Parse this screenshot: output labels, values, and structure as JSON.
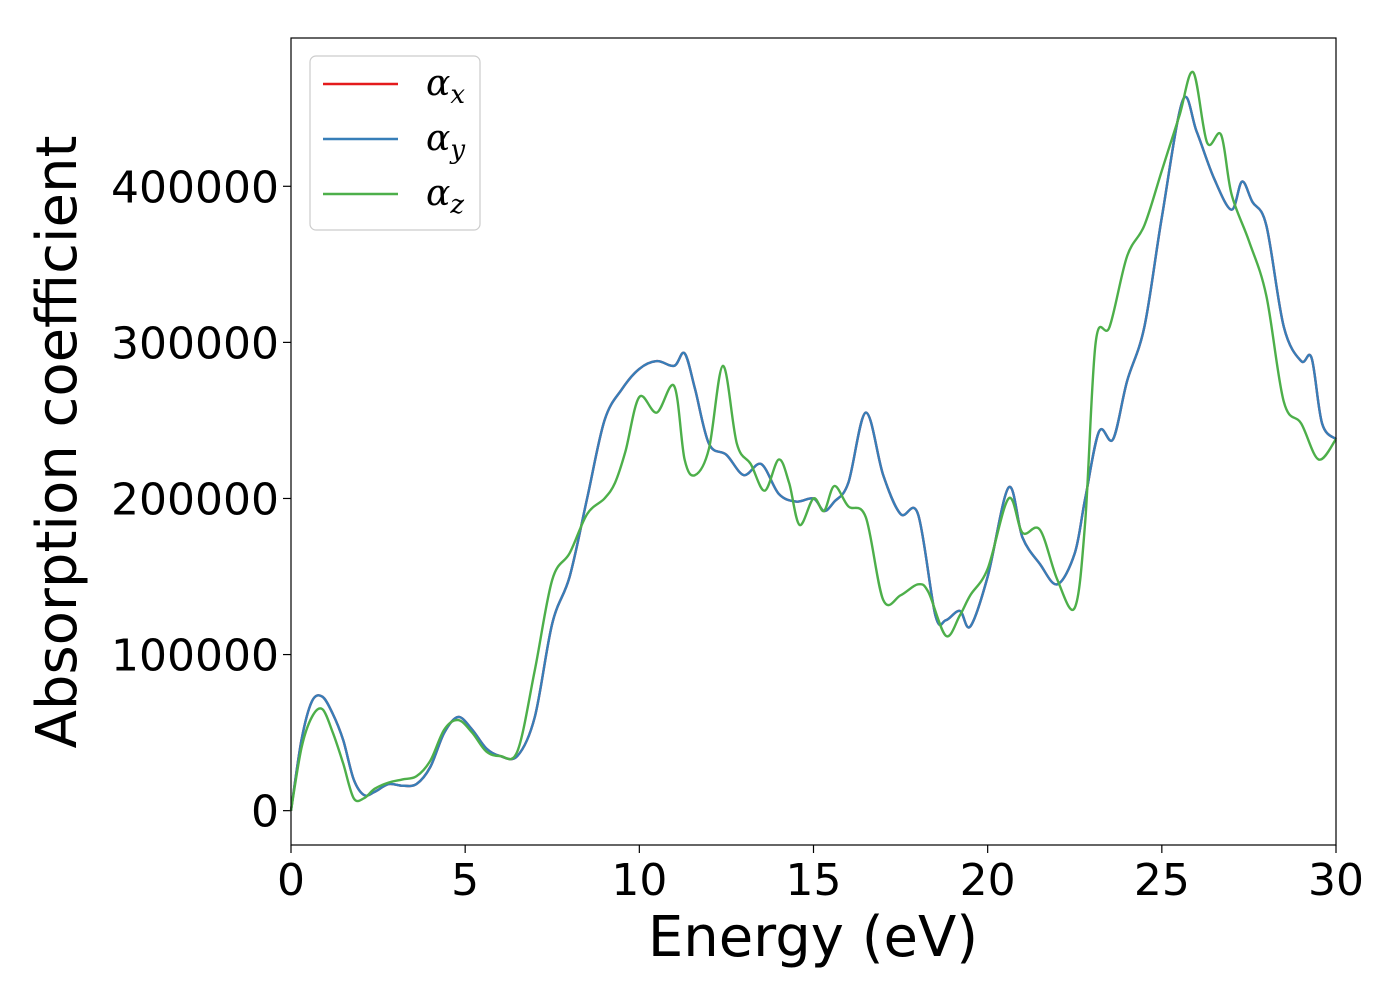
{
  "chart_data": {
    "type": "line",
    "title": "",
    "xlabel": "Energy (eV)",
    "ylabel": "Absorption coefficient",
    "xlim": [
      0,
      30
    ],
    "ylim": [
      -22000,
      495000
    ],
    "x_ticks": [
      "0",
      "5",
      "10",
      "15",
      "20",
      "25",
      "30"
    ],
    "y_ticks": [
      "0",
      "100000",
      "200000",
      "300000",
      "400000"
    ],
    "grid": false,
    "legend_position": "top-left",
    "series": [
      {
        "name": "α_x",
        "legend_base": "α",
        "legend_sub": "x",
        "color": "#e41a1c",
        "x": [
          0,
          0.3,
          0.6,
          0.9,
          1.2,
          1.5,
          1.8,
          2.1,
          2.4,
          2.8,
          3.2,
          3.6,
          4.0,
          4.4,
          4.8,
          5.2,
          5.6,
          6.0,
          6.5,
          7.0,
          7.5,
          8.0,
          8.5,
          9.0,
          9.5,
          10.0,
          10.5,
          11.0,
          11.3,
          11.6,
          12.0,
          12.5,
          13.0,
          13.5,
          14.0,
          14.5,
          15.0,
          15.3,
          15.6,
          16.0,
          16.5,
          17.0,
          17.5,
          18.0,
          18.5,
          18.8,
          19.2,
          19.5,
          20.0,
          20.6,
          21.0,
          21.5,
          22.0,
          22.5,
          22.8,
          23.2,
          23.6,
          24.0,
          24.5,
          25.0,
          25.6,
          26.0,
          26.5,
          27.0,
          27.3,
          27.6,
          28.0,
          28.5,
          29.0,
          29.3,
          29.6,
          30.0
        ],
        "y": [
          0,
          45000,
          70000,
          73000,
          62000,
          45000,
          20000,
          10000,
          12000,
          17000,
          16000,
          17000,
          28000,
          50000,
          60000,
          52000,
          40000,
          35000,
          35000,
          60000,
          120000,
          150000,
          200000,
          250000,
          270000,
          283000,
          288000,
          285000,
          293000,
          270000,
          235000,
          228000,
          215000,
          222000,
          203000,
          198000,
          200000,
          192000,
          198000,
          210000,
          255000,
          215000,
          190000,
          190000,
          125000,
          122000,
          128000,
          118000,
          150000,
          207000,
          175000,
          158000,
          145000,
          165000,
          200000,
          243000,
          238000,
          275000,
          310000,
          380000,
          455000,
          435000,
          405000,
          385000,
          403000,
          390000,
          375000,
          310000,
          288000,
          290000,
          248000,
          238000
        ]
      },
      {
        "name": "α_y",
        "legend_base": "α",
        "legend_sub": "y",
        "color": "#377eb8",
        "x": [
          0,
          0.3,
          0.6,
          0.9,
          1.2,
          1.5,
          1.8,
          2.1,
          2.4,
          2.8,
          3.2,
          3.6,
          4.0,
          4.4,
          4.8,
          5.2,
          5.6,
          6.0,
          6.5,
          7.0,
          7.5,
          8.0,
          8.5,
          9.0,
          9.5,
          10.0,
          10.5,
          11.0,
          11.3,
          11.6,
          12.0,
          12.5,
          13.0,
          13.5,
          14.0,
          14.5,
          15.0,
          15.3,
          15.6,
          16.0,
          16.5,
          17.0,
          17.5,
          18.0,
          18.5,
          18.8,
          19.2,
          19.5,
          20.0,
          20.6,
          21.0,
          21.5,
          22.0,
          22.5,
          22.8,
          23.2,
          23.6,
          24.0,
          24.5,
          25.0,
          25.6,
          26.0,
          26.5,
          27.0,
          27.3,
          27.6,
          28.0,
          28.5,
          29.0,
          29.3,
          29.6,
          30.0
        ],
        "y": [
          0,
          45000,
          70000,
          73000,
          62000,
          45000,
          20000,
          10000,
          12000,
          17000,
          16000,
          17000,
          28000,
          50000,
          60000,
          52000,
          40000,
          35000,
          35000,
          60000,
          120000,
          150000,
          200000,
          250000,
          270000,
          283000,
          288000,
          285000,
          293000,
          270000,
          235000,
          228000,
          215000,
          222000,
          203000,
          198000,
          200000,
          192000,
          198000,
          210000,
          255000,
          215000,
          190000,
          190000,
          125000,
          122000,
          128000,
          118000,
          150000,
          207000,
          175000,
          158000,
          145000,
          165000,
          200000,
          243000,
          238000,
          275000,
          310000,
          380000,
          455000,
          435000,
          405000,
          385000,
          403000,
          390000,
          375000,
          310000,
          288000,
          290000,
          248000,
          238000
        ]
      },
      {
        "name": "α_z",
        "legend_base": "α",
        "legend_sub": "z",
        "color": "#4daf4a",
        "x": [
          0,
          0.3,
          0.6,
          0.9,
          1.2,
          1.5,
          1.8,
          2.1,
          2.4,
          2.8,
          3.2,
          3.6,
          4.0,
          4.4,
          4.8,
          5.2,
          5.6,
          6.0,
          6.5,
          7.0,
          7.5,
          8.0,
          8.5,
          9.0,
          9.3,
          9.6,
          10.0,
          10.5,
          11.0,
          11.3,
          11.6,
          12.0,
          12.4,
          12.8,
          13.2,
          13.6,
          14.0,
          14.3,
          14.6,
          15.0,
          15.3,
          15.6,
          16.0,
          16.5,
          17.0,
          17.5,
          18.0,
          18.3,
          18.8,
          19.2,
          19.5,
          20.0,
          20.6,
          21.0,
          21.5,
          22.0,
          22.5,
          22.8,
          23.1,
          23.5,
          24.0,
          24.5,
          25.0,
          25.5,
          25.9,
          26.3,
          26.7,
          27.0,
          27.5,
          28.0,
          28.5,
          29.0,
          29.5,
          30.0
        ],
        "y": [
          0,
          40000,
          60000,
          65000,
          50000,
          30000,
          8000,
          8000,
          14000,
          18000,
          20000,
          22000,
          32000,
          52000,
          58000,
          50000,
          38000,
          35000,
          38000,
          90000,
          148000,
          165000,
          190000,
          200000,
          210000,
          230000,
          265000,
          255000,
          272000,
          225000,
          215000,
          232000,
          285000,
          235000,
          222000,
          205000,
          225000,
          210000,
          183000,
          200000,
          192000,
          208000,
          195000,
          188000,
          135000,
          138000,
          145000,
          140000,
          112000,
          125000,
          138000,
          155000,
          200000,
          178000,
          180000,
          148000,
          130000,
          185000,
          300000,
          310000,
          355000,
          375000,
          410000,
          445000,
          473000,
          428000,
          433000,
          395000,
          365000,
          330000,
          262000,
          248000,
          225000,
          238000
        ]
      }
    ]
  }
}
